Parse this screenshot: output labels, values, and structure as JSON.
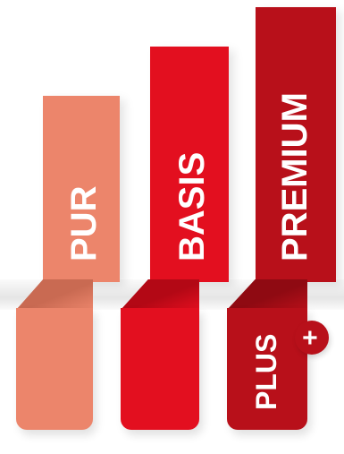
{
  "tiers": [
    {
      "label": "PUR",
      "color": "#ec856b",
      "fold_color": "#c96a52"
    },
    {
      "label": "BASIS",
      "color": "#e30f1f",
      "fold_color": "#b30815"
    },
    {
      "label": "PREMIUM",
      "color": "#b8101a",
      "fold_color": "#8f0a12"
    }
  ],
  "premium_plus": {
    "label": "PLUS",
    "symbol": "+",
    "color": "#b8101a"
  }
}
